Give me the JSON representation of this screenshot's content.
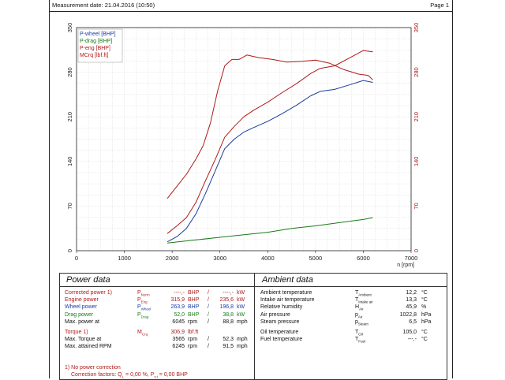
{
  "header": {
    "measurement_date": "Measurement date: 21.04.2016 (10:50)",
    "page": "Page 1"
  },
  "chart_data": {
    "type": "line",
    "xlabel": "n [rpm]",
    "xlim": [
      0,
      7000
    ],
    "ylim": [
      0,
      350
    ],
    "x_ticks": [
      0,
      1000,
      2000,
      3000,
      4000,
      5000,
      6000,
      7000
    ],
    "y_ticks": [
      0,
      70,
      140,
      210,
      280,
      350
    ],
    "grid": true,
    "legend_position": "top-left",
    "series": [
      {
        "name": "P-wheel [BHP]",
        "color": "#1a3ca0",
        "points": [
          [
            1900,
            14
          ],
          [
            2100,
            22
          ],
          [
            2300,
            35
          ],
          [
            2500,
            58
          ],
          [
            2700,
            90
          ],
          [
            2900,
            125
          ],
          [
            3100,
            160
          ],
          [
            3300,
            175
          ],
          [
            3500,
            186
          ],
          [
            3700,
            193
          ],
          [
            4000,
            203
          ],
          [
            4300,
            215
          ],
          [
            4600,
            228
          ],
          [
            4900,
            243
          ],
          [
            5100,
            250
          ],
          [
            5400,
            253
          ],
          [
            5700,
            260
          ],
          [
            6000,
            267
          ],
          [
            6200,
            264
          ]
        ]
      },
      {
        "name": "P-drag [BHP]",
        "color": "#1a7a1a",
        "points": [
          [
            1900,
            12
          ],
          [
            2500,
            17
          ],
          [
            3000,
            21
          ],
          [
            3500,
            25
          ],
          [
            4000,
            29
          ],
          [
            4500,
            35
          ],
          [
            5000,
            39
          ],
          [
            5500,
            44
          ],
          [
            6000,
            49
          ],
          [
            6200,
            52
          ]
        ]
      },
      {
        "name": "P-eng [BHP]",
        "color": "#b01818",
        "points": [
          [
            1900,
            27
          ],
          [
            2100,
            39
          ],
          [
            2300,
            52
          ],
          [
            2500,
            76
          ],
          [
            2700,
            110
          ],
          [
            2900,
            143
          ],
          [
            3100,
            178
          ],
          [
            3300,
            195
          ],
          [
            3500,
            210
          ],
          [
            3700,
            220
          ],
          [
            4000,
            233
          ],
          [
            4300,
            248
          ],
          [
            4600,
            262
          ],
          [
            4900,
            278
          ],
          [
            5100,
            286
          ],
          [
            5400,
            290
          ],
          [
            5700,
            302
          ],
          [
            6000,
            314
          ],
          [
            6200,
            312
          ]
        ]
      },
      {
        "name": "MCrq [lbf.ft]",
        "color": "#b01818",
        "points": [
          [
            1900,
            82
          ],
          [
            2100,
            101
          ],
          [
            2300,
            120
          ],
          [
            2500,
            144
          ],
          [
            2650,
            165
          ],
          [
            2800,
            200
          ],
          [
            2950,
            250
          ],
          [
            3100,
            290
          ],
          [
            3250,
            300
          ],
          [
            3400,
            300
          ],
          [
            3565,
            306.9
          ],
          [
            3800,
            303
          ],
          [
            4100,
            300
          ],
          [
            4400,
            296
          ],
          [
            4700,
            297
          ],
          [
            5000,
            299
          ],
          [
            5300,
            294
          ],
          [
            5600,
            284
          ],
          [
            5900,
            277
          ],
          [
            6100,
            275
          ],
          [
            6200,
            268
          ]
        ]
      }
    ]
  },
  "power": {
    "title": "Power data",
    "rows": [
      {
        "label": "Corrected power",
        "note": "1)",
        "sym": "P",
        "sub": "Norm",
        "v1": "----,-",
        "u1": "BHP",
        "v2": "----,-",
        "u2": "kW",
        "color": "red"
      },
      {
        "label": "Engine power",
        "sym": "P",
        "sub": "Eng",
        "v1": "315,9",
        "u1": "BHP",
        "v2": "235,6",
        "u2": "kW",
        "color": "red"
      },
      {
        "label": "Wheel power",
        "sym": "P",
        "sub": "Wheel",
        "v1": "263,9",
        "u1": "BHP",
        "v2": "196,8",
        "u2": "kW",
        "color": "blu"
      },
      {
        "label": "Drag power",
        "sym": "P",
        "sub": "Drag",
        "v1": "52,0",
        "u1": "BHP",
        "v2": "38,8",
        "u2": "kW",
        "color": "grn"
      },
      {
        "label": "Max. power at",
        "sym": "",
        "sub": "",
        "v1": "6045",
        "u1": "rpm",
        "v2": "88,8",
        "u2": "mph",
        "color": ""
      },
      {
        "label": "Torque",
        "note": "1)",
        "sym": "M",
        "sub": "Crq",
        "v1": "306,9",
        "u1": "lbf.ft",
        "v2": "",
        "u2": "",
        "color": "red"
      },
      {
        "label": "Max. Torque at",
        "sym": "",
        "sub": "",
        "v1": "3565",
        "u1": "rpm",
        "v2": "52,3",
        "u2": "mph",
        "color": ""
      },
      {
        "label": "Max. attained RPM",
        "sym": "",
        "sub": "",
        "v1": "6245",
        "u1": "rpm",
        "v2": "91,5",
        "u2": "mph",
        "color": ""
      }
    ],
    "footnote1": "1) No power correction",
    "footnote2": "Correction factors: Q",
    "footnote2_sub1": "L",
    "footnote2_mid": " =   0,00 %,  P",
    "footnote2_sub2": "v,t",
    "footnote2_end": " =   0,00 BHP"
  },
  "ambient": {
    "title": "Ambient data",
    "rows": [
      {
        "label": "Ambient temperature",
        "sym": "T",
        "sub": "Ambient",
        "v": "12,2",
        "u": "°C"
      },
      {
        "label": "Intake air temperature",
        "sym": "T",
        "sub": "Intake air",
        "v": "13,3",
        "u": "°C"
      },
      {
        "label": "Relative humidity",
        "sym": "H",
        "sub": "Air",
        "v": "45,9",
        "u": "%"
      },
      {
        "label": "Air pressure",
        "sym": "p",
        "sub": "Air",
        "v": "1022,8",
        "u": "hPa"
      },
      {
        "label": "Steam pressure",
        "sym": "p",
        "sub": "Steam",
        "v": "6,5",
        "u": "hPa"
      },
      {
        "label": "Oil temperature",
        "sym": "T",
        "sub": "Oil",
        "v": "105,0",
        "u": "°C"
      },
      {
        "label": "Fuel temperature",
        "sym": "T",
        "sub": "Fuel",
        "v": "---,-",
        "u": "°C"
      }
    ]
  }
}
